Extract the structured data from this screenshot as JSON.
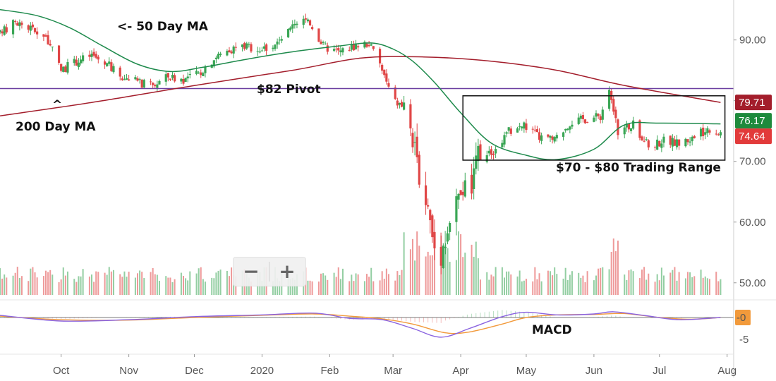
{
  "chart_data": {
    "type": "candlestick",
    "y_ticks": [
      "90.00",
      "80.00",
      "70.00",
      "60.00",
      "50.00"
    ],
    "y_tick_values": [
      90,
      80,
      70,
      60,
      50
    ],
    "ylim": [
      48,
      96
    ],
    "macd_ticks": [
      "-0",
      "-5"
    ],
    "macd_tick_values": [
      0,
      -5
    ],
    "x_ticks": [
      "Oct",
      "Nov",
      "Dec",
      "2020",
      "Feb",
      "Mar",
      "Apr",
      "May",
      "Jun",
      "Jul",
      "Aug"
    ],
    "x_tick_dates": [
      "2019-10-01",
      "2019-11-01",
      "2019-12-01",
      "2020-01-01",
      "2020-02-01",
      "2020-03-01",
      "2020-04-01",
      "2020-05-01",
      "2020-06-01",
      "2020-07-01",
      "2020-08-01"
    ],
    "date_range": [
      "2019-09-03",
      "2020-08-04"
    ],
    "price_tags": [
      {
        "label": "79.71",
        "value": 79.71,
        "color": "#a31d2b"
      },
      {
        "label": "76.17",
        "value": 76.17,
        "color": "#1e8a3c"
      },
      {
        "label": "74.64",
        "value": 74.64,
        "color": "#e23a3a"
      }
    ],
    "macd_tag": {
      "label": "-0",
      "value": 0,
      "color": "#f29a3b"
    },
    "pivot_level": 82,
    "range_box": {
      "date_start": "2020-04-02",
      "date_end": "2020-07-31",
      "y_low": 70.2,
      "y_high": 80.8
    },
    "annotations": {
      "ma50": "<- 50 Day MA",
      "ma200_caret": "^",
      "ma200": "200 Day MA",
      "pivot": "$82 Pivot",
      "range": "$70 - $80 Trading Range",
      "macd": "MACD"
    },
    "colors": {
      "up": "#3aa655",
      "down": "#e04646",
      "ma50": "#1e8a4c",
      "ma200": "#a31d2b",
      "pivot": "#6b3fa0",
      "macd": "#8a63e0",
      "signal": "#f29a3b"
    },
    "price_path": [
      [
        "2019-09-03",
        91.0
      ],
      [
        "2019-09-10",
        93.0
      ],
      [
        "2019-09-17",
        92.0
      ],
      [
        "2019-09-24",
        90.5
      ],
      [
        "2019-10-01",
        85.0
      ],
      [
        "2019-10-08",
        86.5
      ],
      [
        "2019-10-15",
        87.5
      ],
      [
        "2019-10-22",
        86.0
      ],
      [
        "2019-10-29",
        84.0
      ],
      [
        "2019-11-05",
        83.0
      ],
      [
        "2019-11-12",
        82.5
      ],
      [
        "2019-11-19",
        84.0
      ],
      [
        "2019-11-26",
        83.5
      ],
      [
        "2019-12-03",
        84.5
      ],
      [
        "2019-12-10",
        87.0
      ],
      [
        "2019-12-17",
        88.5
      ],
      [
        "2019-12-24",
        89.0
      ],
      [
        "2020-01-01",
        88.5
      ],
      [
        "2020-01-08",
        89.5
      ],
      [
        "2020-01-15",
        92.0
      ],
      [
        "2020-01-22",
        93.5
      ],
      [
        "2020-01-29",
        89.0
      ],
      [
        "2020-02-05",
        88.0
      ],
      [
        "2020-02-12",
        89.0
      ],
      [
        "2020-02-19",
        89.5
      ],
      [
        "2020-02-24",
        86.0
      ],
      [
        "2020-03-01",
        80.0
      ],
      [
        "2020-03-06",
        79.0
      ],
      [
        "2020-03-11",
        71.0
      ],
      [
        "2020-03-16",
        64.0
      ],
      [
        "2020-03-20",
        56.0
      ],
      [
        "2020-03-23",
        55.0
      ],
      [
        "2020-03-27",
        60.0
      ],
      [
        "2020-04-01",
        65.0
      ],
      [
        "2020-04-06",
        66.0
      ],
      [
        "2020-04-09",
        70.5
      ],
      [
        "2020-04-16",
        71.5
      ],
      [
        "2020-04-23",
        75.0
      ],
      [
        "2020-04-30",
        76.0
      ],
      [
        "2020-05-07",
        74.0
      ],
      [
        "2020-05-14",
        73.5
      ],
      [
        "2020-05-21",
        76.5
      ],
      [
        "2020-05-28",
        77.0
      ],
      [
        "2020-06-04",
        77.5
      ],
      [
        "2020-06-08",
        82.0
      ],
      [
        "2020-06-12",
        75.0
      ],
      [
        "2020-06-19",
        76.0
      ],
      [
        "2020-06-26",
        72.5
      ],
      [
        "2020-07-03",
        73.5
      ],
      [
        "2020-07-10",
        73.0
      ],
      [
        "2020-07-17",
        74.0
      ],
      [
        "2020-07-24",
        75.5
      ],
      [
        "2020-07-29",
        74.64
      ]
    ],
    "ma50_path": [
      [
        "2019-09-03",
        95.0
      ],
      [
        "2019-09-20",
        94.0
      ],
      [
        "2019-10-05",
        92.0
      ],
      [
        "2019-10-20",
        89.0
      ],
      [
        "2019-11-05",
        86.0
      ],
      [
        "2019-11-20",
        84.8
      ],
      [
        "2019-12-05",
        85.5
      ],
      [
        "2019-12-20",
        86.5
      ],
      [
        "2020-01-05",
        87.5
      ],
      [
        "2020-01-20",
        88.3
      ],
      [
        "2020-02-05",
        89.0
      ],
      [
        "2020-02-20",
        89.5
      ],
      [
        "2020-03-01",
        88.5
      ],
      [
        "2020-03-10",
        86.5
      ],
      [
        "2020-03-20",
        83.0
      ],
      [
        "2020-04-01",
        78.0
      ],
      [
        "2020-04-15",
        73.0
      ],
      [
        "2020-05-01",
        71.0
      ],
      [
        "2020-05-15",
        70.3
      ],
      [
        "2020-06-01",
        72.0
      ],
      [
        "2020-06-15",
        76.0
      ],
      [
        "2020-07-01",
        76.3
      ],
      [
        "2020-07-29",
        76.17
      ]
    ],
    "ma200_path": [
      [
        "2019-09-03",
        77.5
      ],
      [
        "2019-10-15",
        79.7
      ],
      [
        "2019-12-01",
        82.5
      ],
      [
        "2020-01-15",
        85.0
      ],
      [
        "2020-02-15",
        87.0
      ],
      [
        "2020-03-15",
        87.2
      ],
      [
        "2020-04-15",
        86.5
      ],
      [
        "2020-05-15",
        85.0
      ],
      [
        "2020-06-15",
        82.5
      ],
      [
        "2020-07-29",
        79.71
      ]
    ],
    "macd_path": [
      [
        "2019-09-03",
        0.5
      ],
      [
        "2019-10-01",
        -0.8
      ],
      [
        "2019-11-01",
        -0.5
      ],
      [
        "2019-12-01",
        0.2
      ],
      [
        "2020-01-01",
        0.6
      ],
      [
        "2020-01-25",
        1.0
      ],
      [
        "2020-02-10",
        -0.2
      ],
      [
        "2020-02-25",
        -0.5
      ],
      [
        "2020-03-10",
        -2.5
      ],
      [
        "2020-03-23",
        -4.5
      ],
      [
        "2020-04-05",
        -2.5
      ],
      [
        "2020-04-20",
        0.2
      ],
      [
        "2020-05-01",
        1.2
      ],
      [
        "2020-05-15",
        0.6
      ],
      [
        "2020-06-01",
        0.8
      ],
      [
        "2020-06-10",
        1.3
      ],
      [
        "2020-06-25",
        0.4
      ],
      [
        "2020-07-10",
        -0.5
      ],
      [
        "2020-07-29",
        0.0
      ]
    ],
    "signal_path": [
      [
        "2019-09-03",
        0.3
      ],
      [
        "2019-10-01",
        -0.5
      ],
      [
        "2019-11-01",
        -0.6
      ],
      [
        "2019-12-01",
        0.0
      ],
      [
        "2020-01-01",
        0.5
      ],
      [
        "2020-01-25",
        0.8
      ],
      [
        "2020-02-10",
        0.3
      ],
      [
        "2020-02-25",
        -0.3
      ],
      [
        "2020-03-10",
        -1.5
      ],
      [
        "2020-03-25",
        -3.5
      ],
      [
        "2020-04-05",
        -3.3
      ],
      [
        "2020-04-20",
        -1.5
      ],
      [
        "2020-05-01",
        0.0
      ],
      [
        "2020-05-15",
        0.6
      ],
      [
        "2020-06-01",
        0.7
      ],
      [
        "2020-06-15",
        0.9
      ],
      [
        "2020-07-01",
        0.0
      ],
      [
        "2020-07-15",
        -0.4
      ],
      [
        "2020-07-29",
        0.0
      ]
    ]
  },
  "controls": {
    "zoom_out_label": "−",
    "zoom_in_label": "+"
  }
}
